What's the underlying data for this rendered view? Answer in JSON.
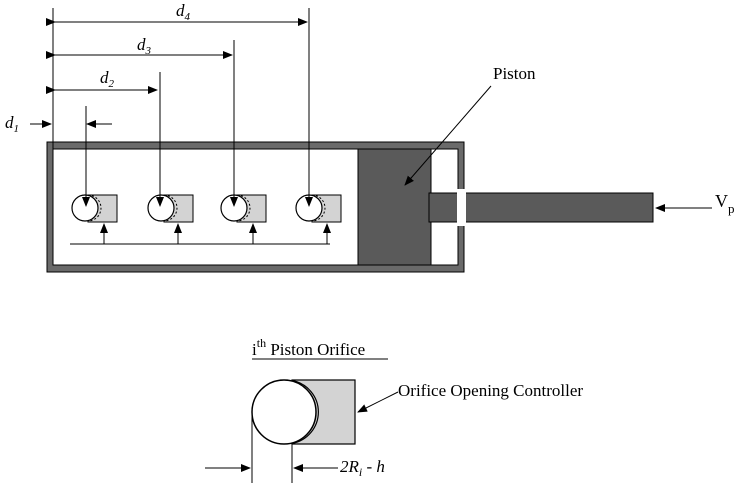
{
  "labels": {
    "d1": "d",
    "d1_sub": "1",
    "d2": "d",
    "d2_sub": "2",
    "d3": "d",
    "d3_sub": "3",
    "d4": "d",
    "d4_sub": "4",
    "piston": "Piston",
    "vp": "V",
    "vp_sub": "p",
    "detail_title_sup": "i",
    "detail_title_th": "th",
    "detail_title_rest": " Piston Orifice",
    "controller": "Orifice Opening Controller",
    "gap_label": "2R",
    "gap_sub": "i",
    "gap_rest": " - h"
  },
  "colors": {
    "piston_fill": "#5a5a5a",
    "cylinder_wall": "#6a6a6a",
    "controller_fill": "#d3d3d3"
  }
}
